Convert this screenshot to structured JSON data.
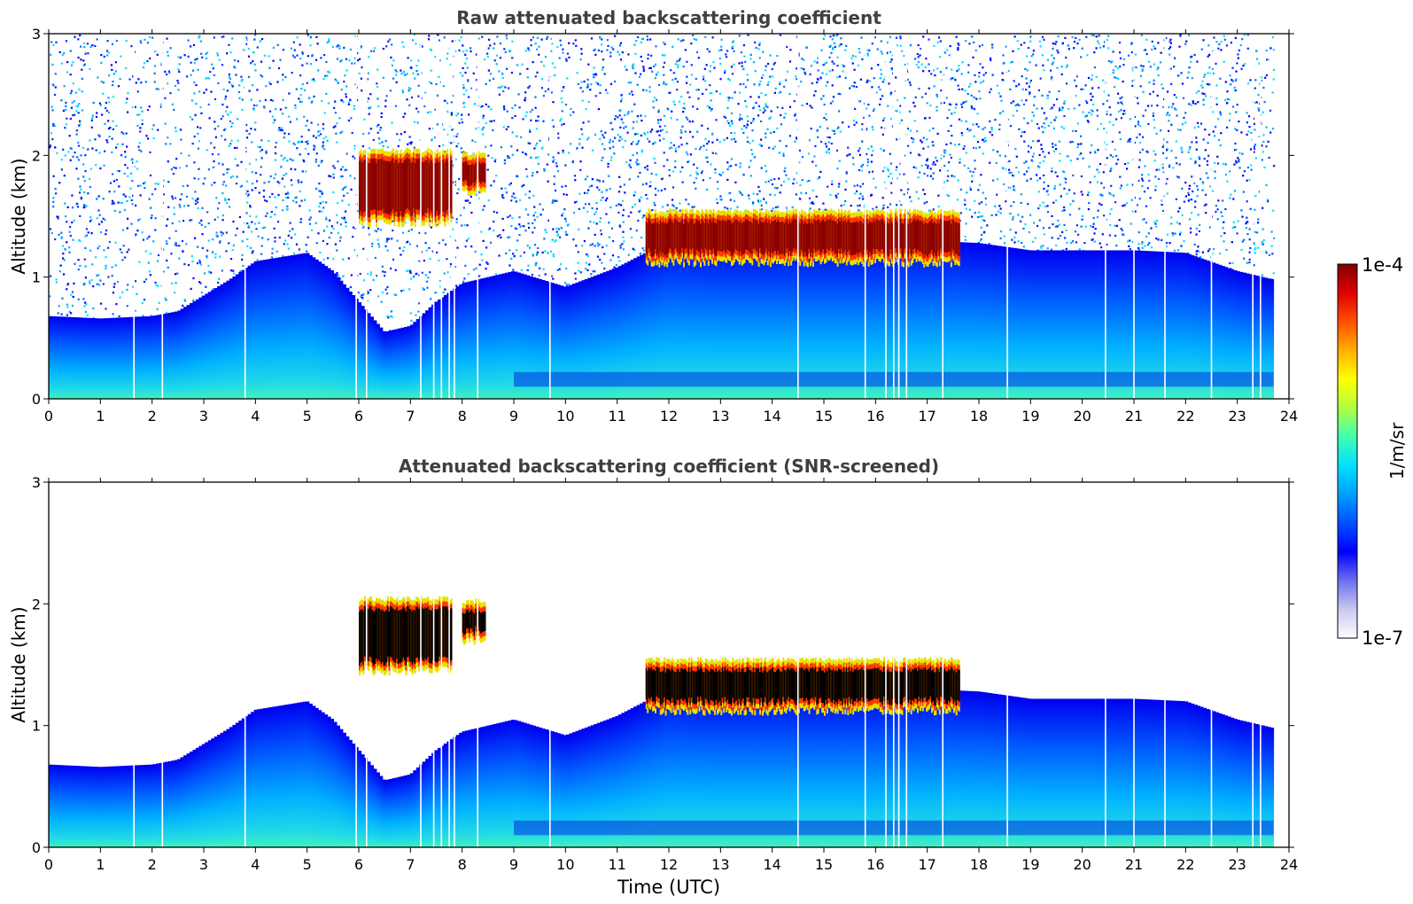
{
  "chart_data": {
    "type": "heatmap",
    "figure": {
      "shared_xlabel": "Time (UTC)",
      "colorbar": {
        "label": "1/m/sr",
        "max_label": "1e-4",
        "min_label": "1e-7",
        "scale": "log",
        "range": [
          1e-07,
          0.0001
        ],
        "colormap": [
          "#ffffff",
          "#c8c8f0",
          "#6e6ef0",
          "#0000ff",
          "#0050ff",
          "#00a0ff",
          "#00e0ff",
          "#40ffb0",
          "#b0ff40",
          "#ffff00",
          "#ffb000",
          "#ff5000",
          "#e00000",
          "#800000"
        ]
      }
    },
    "panels": [
      {
        "id": "raw",
        "title": "Raw attenuated backscattering coefficient",
        "ylabel": "Altitude (km)",
        "xlim": [
          0,
          24
        ],
        "ylim": [
          0,
          3
        ],
        "xticks": [
          "0",
          "1",
          "2",
          "3",
          "4",
          "5",
          "6",
          "7",
          "8",
          "9",
          "10",
          "11",
          "12",
          "13",
          "14",
          "15",
          "16",
          "17",
          "18",
          "19",
          "20",
          "21",
          "22",
          "23",
          "24"
        ],
        "yticks": [
          "0",
          "1",
          "2",
          "3"
        ],
        "data_end_time": 23.7,
        "boundary_layer_top_km": [
          [
            0,
            0.68
          ],
          [
            1,
            0.66
          ],
          [
            2,
            0.68
          ],
          [
            2.5,
            0.72
          ],
          [
            3,
            0.85
          ],
          [
            3.5,
            0.98
          ],
          [
            4,
            1.13
          ],
          [
            5,
            1.2
          ],
          [
            5.5,
            1.05
          ],
          [
            6,
            0.8
          ],
          [
            6.5,
            0.55
          ],
          [
            7,
            0.6
          ],
          [
            7.5,
            0.8
          ],
          [
            8,
            0.95
          ],
          [
            9,
            1.05
          ],
          [
            10,
            0.92
          ],
          [
            11,
            1.08
          ],
          [
            12,
            1.3
          ],
          [
            13,
            1.28
          ],
          [
            14,
            1.28
          ],
          [
            15,
            1.28
          ],
          [
            16,
            1.28
          ],
          [
            17,
            1.3
          ],
          [
            18,
            1.28
          ],
          [
            19,
            1.22
          ],
          [
            20,
            1.22
          ],
          [
            21,
            1.22
          ],
          [
            22,
            1.2
          ],
          [
            23,
            1.05
          ],
          [
            23.7,
            0.98
          ]
        ],
        "cloud_layers": [
          {
            "t_start": 6.0,
            "t_end": 7.8,
            "base_km": 1.5,
            "top_km": 2.0
          },
          {
            "t_start": 8.0,
            "t_end": 8.45,
            "base_km": 1.75,
            "top_km": 1.98
          },
          {
            "t_start": 11.55,
            "t_end": 17.6,
            "base_km": 1.17,
            "top_km": 1.5
          }
        ],
        "data_gaps_hours": [
          1.65,
          2.2,
          3.8,
          5.95,
          6.15,
          7.2,
          7.45,
          7.6,
          7.75,
          7.85,
          8.3,
          9.7,
          14.5,
          15.8,
          16.2,
          16.35,
          16.45,
          16.6,
          17.3,
          18.55,
          20.45,
          21.0,
          21.6,
          22.5,
          23.3,
          23.45
        ],
        "noise_above_bl": true
      },
      {
        "id": "screened",
        "title": "Attenuated backscattering coefficient (SNR-screened)",
        "ylabel": "Altitude (km)",
        "xlabel": "Time (UTC)",
        "xlim": [
          0,
          24
        ],
        "ylim": [
          0,
          3
        ],
        "xticks": [
          "0",
          "1",
          "2",
          "3",
          "4",
          "5",
          "6",
          "7",
          "8",
          "9",
          "10",
          "11",
          "12",
          "13",
          "14",
          "15",
          "16",
          "17",
          "18",
          "19",
          "20",
          "21",
          "22",
          "23",
          "24"
        ],
        "yticks": [
          "0",
          "1",
          "2",
          "3"
        ],
        "data_end_time": 23.7,
        "boundary_layer_top_km": [
          [
            0,
            0.68
          ],
          [
            1,
            0.66
          ],
          [
            2,
            0.68
          ],
          [
            2.5,
            0.72
          ],
          [
            3,
            0.85
          ],
          [
            3.5,
            0.98
          ],
          [
            4,
            1.13
          ],
          [
            5,
            1.2
          ],
          [
            5.5,
            1.05
          ],
          [
            6,
            0.8
          ],
          [
            6.5,
            0.55
          ],
          [
            7,
            0.6
          ],
          [
            7.5,
            0.8
          ],
          [
            8,
            0.95
          ],
          [
            9,
            1.05
          ],
          [
            10,
            0.92
          ],
          [
            11,
            1.08
          ],
          [
            12,
            1.3
          ],
          [
            13,
            1.28
          ],
          [
            14,
            1.28
          ],
          [
            15,
            1.28
          ],
          [
            16,
            1.28
          ],
          [
            17,
            1.3
          ],
          [
            18,
            1.28
          ],
          [
            19,
            1.22
          ],
          [
            20,
            1.22
          ],
          [
            21,
            1.22
          ],
          [
            22,
            1.2
          ],
          [
            23,
            1.05
          ],
          [
            23.7,
            0.98
          ]
        ],
        "cloud_layers": [
          {
            "t_start": 6.0,
            "t_end": 7.8,
            "base_km": 1.5,
            "top_km": 2.0
          },
          {
            "t_start": 8.0,
            "t_end": 8.45,
            "base_km": 1.75,
            "top_km": 1.98
          },
          {
            "t_start": 11.55,
            "t_end": 17.6,
            "base_km": 1.17,
            "top_km": 1.5
          }
        ],
        "data_gaps_hours": [
          1.65,
          2.2,
          3.8,
          5.95,
          6.15,
          7.2,
          7.45,
          7.6,
          7.75,
          7.85,
          8.3,
          9.7,
          14.5,
          15.8,
          16.2,
          16.35,
          16.45,
          16.6,
          17.3,
          18.55,
          20.45,
          21.0,
          21.6,
          22.5,
          23.3,
          23.45
        ],
        "noise_above_bl": false,
        "saturated_cloud_core_color": "#000000"
      }
    ]
  }
}
